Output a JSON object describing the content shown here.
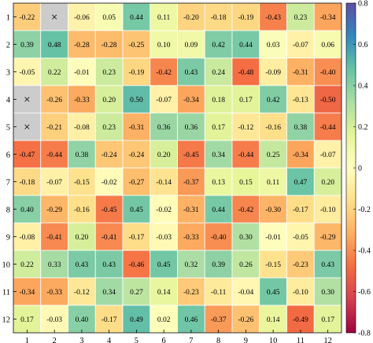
{
  "chart_data": {
    "type": "heatmap",
    "title": "",
    "xlabel": "",
    "ylabel": "",
    "x_categories": [
      "1",
      "2",
      "3",
      "4",
      "5",
      "6",
      "7",
      "8",
      "9",
      "10",
      "11",
      "12"
    ],
    "y_categories": [
      "1",
      "2",
      "3",
      "4",
      "5",
      "6",
      "7",
      "8",
      "9",
      "10",
      "11",
      "12"
    ],
    "missing_marker": "×",
    "values": [
      [
        -0.22,
        null,
        -0.06,
        0.05,
        0.44,
        0.11,
        -0.2,
        -0.18,
        -0.19,
        -0.43,
        0.23,
        -0.34
      ],
      [
        0.39,
        0.48,
        -0.28,
        -0.28,
        -0.25,
        0.1,
        0.09,
        0.42,
        0.44,
        0.03,
        -0.07,
        0.06
      ],
      [
        -0.05,
        0.22,
        -0.01,
        0.23,
        -0.19,
        -0.42,
        0.43,
        0.24,
        -0.48,
        -0.09,
        -0.31,
        -0.4
      ],
      [
        null,
        -0.26,
        -0.33,
        0.2,
        0.5,
        -0.07,
        -0.34,
        0.18,
        0.17,
        0.42,
        -0.13,
        -0.5
      ],
      [
        null,
        -0.21,
        -0.08,
        0.23,
        -0.31,
        0.36,
        0.36,
        0.17,
        -0.12,
        -0.16,
        0.38,
        -0.44
      ],
      [
        -0.47,
        -0.44,
        0.38,
        -0.24,
        -0.24,
        0.2,
        -0.45,
        0.34,
        -0.44,
        0.25,
        -0.34,
        -0.07
      ],
      [
        -0.18,
        -0.07,
        -0.15,
        -0.02,
        -0.27,
        -0.14,
        -0.37,
        0.13,
        0.15,
        0.11,
        0.47,
        0.2
      ],
      [
        0.4,
        -0.29,
        -0.16,
        -0.45,
        0.45,
        -0.02,
        -0.31,
        0.44,
        -0.42,
        -0.3,
        -0.17,
        -0.1
      ],
      [
        -0.08,
        -0.41,
        0.2,
        -0.41,
        -0.17,
        -0.03,
        -0.33,
        -0.4,
        0.3,
        -0.01,
        -0.05,
        -0.29
      ],
      [
        0.22,
        0.33,
        0.43,
        0.43,
        -0.46,
        0.45,
        0.32,
        0.39,
        0.26,
        -0.15,
        -0.23,
        0.43
      ],
      [
        -0.34,
        -0.33,
        -0.12,
        0.34,
        0.27,
        0.14,
        -0.23,
        -0.11,
        -0.04,
        0.45,
        -0.1,
        0.3
      ],
      [
        0.17,
        -0.03,
        0.4,
        -0.17,
        0.49,
        0.02,
        0.46,
        -0.37,
        -0.26,
        0.14,
        -0.49,
        0.17
      ]
    ],
    "colorbar": {
      "ticks": [
        "0.8",
        "0.6",
        "0.4",
        "0.2",
        "0",
        "-0.2",
        "-0.4",
        "-0.6",
        "-0.8"
      ],
      "range": [
        -0.8,
        0.8
      ],
      "position": "right",
      "colormap": [
        "#9e0142",
        "#d53e4f",
        "#f46d43",
        "#fdae61",
        "#fee08b",
        "#ffffbf",
        "#e6f598",
        "#abdda4",
        "#66c2a5",
        "#3288bd",
        "#5e4fa2"
      ]
    },
    "missing_color": "#cccccc",
    "grid": false
  }
}
